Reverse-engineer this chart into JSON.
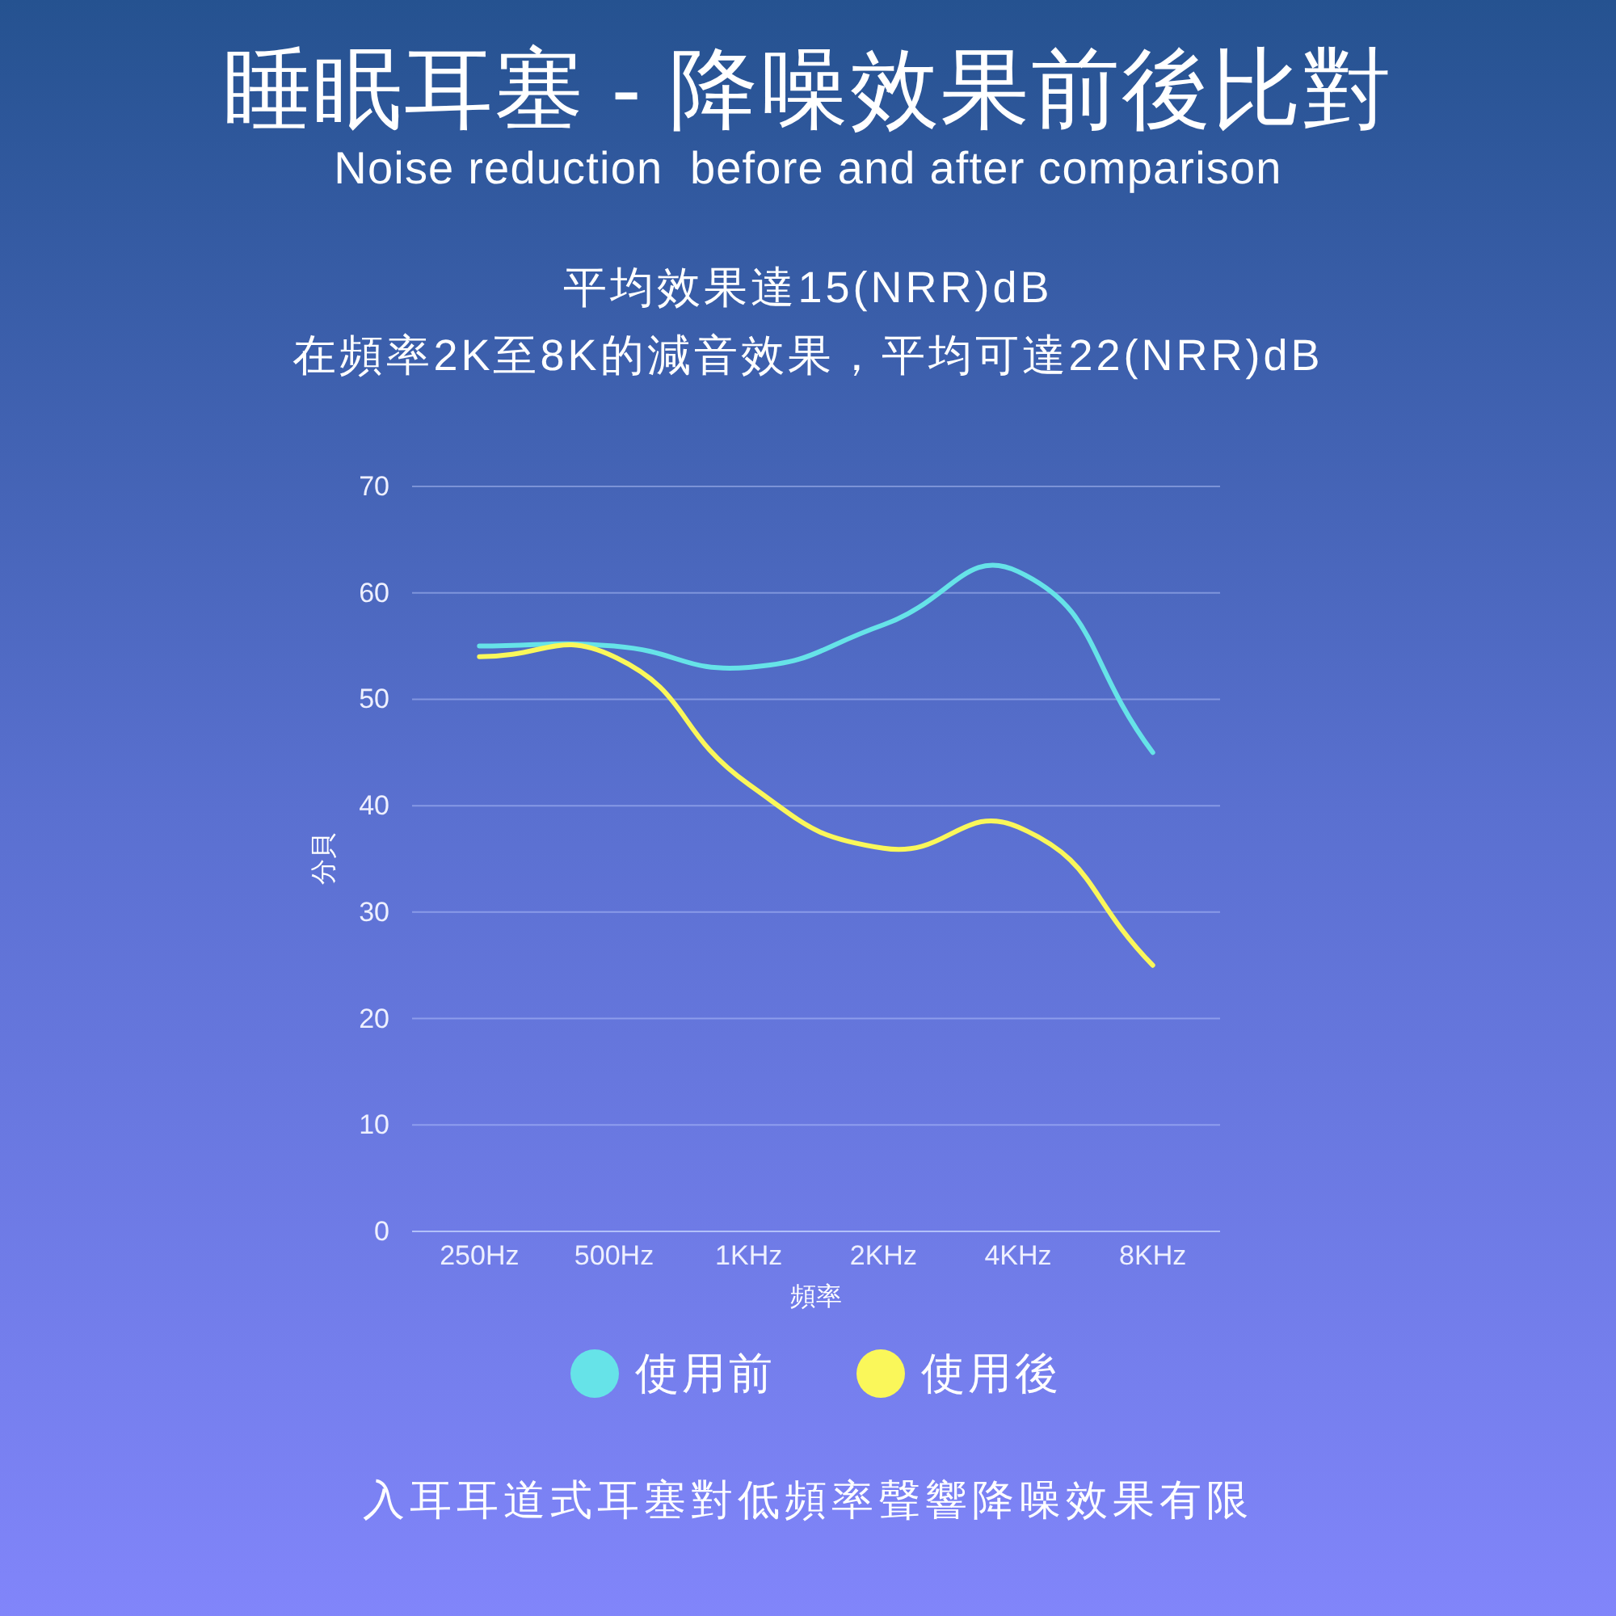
{
  "chart_data": {
    "type": "line",
    "title": "睡眠耳塞 - 降噪效果前後比對",
    "subtitle": "Noise reduction  before and after comparison",
    "annotations": [
      "平均效果達15(NRR)dB",
      "在頻率2K至8K的減音效果，平均可達22(NRR)dB",
      "入耳耳道式耳塞對低頻率聲響降噪效果有限"
    ],
    "xlabel": "頻率",
    "ylabel": "分貝",
    "categories": [
      "250Hz",
      "500Hz",
      "1KHz",
      "2KHz",
      "4KHz",
      "8KHz"
    ],
    "series": [
      {
        "name": "使用前",
        "color": "#66e3e8",
        "values": [
          55,
          55,
          53,
          57,
          62,
          45
        ]
      },
      {
        "name": "使用後",
        "color": "#faf75a",
        "values": [
          54,
          54,
          42,
          36,
          38,
          25
        ]
      }
    ],
    "ylim": [
      0,
      70
    ],
    "yticks": [
      0,
      10,
      20,
      30,
      40,
      50,
      60,
      70
    ],
    "grid": "y",
    "legend": "bottom"
  }
}
